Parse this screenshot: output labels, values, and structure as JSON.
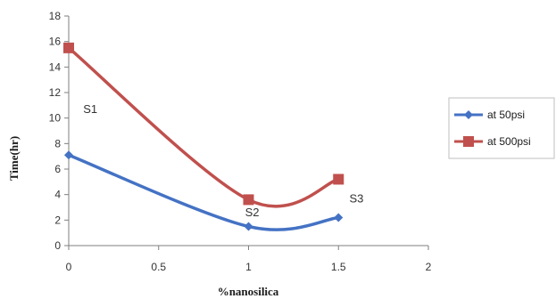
{
  "chart_data": {
    "type": "line",
    "xlabel": "%nanosilica",
    "ylabel": "Time(hr)",
    "xlim": [
      0,
      2
    ],
    "ylim": [
      0,
      18
    ],
    "x_ticks": [
      0,
      0.5,
      1,
      1.5,
      2
    ],
    "y_ticks": [
      0,
      2,
      4,
      6,
      8,
      10,
      12,
      14,
      16,
      18
    ],
    "grid": false,
    "legend_position": "right",
    "smooth": true,
    "series": [
      {
        "name": "at 50psi",
        "color": "#4472C4",
        "marker": "diamond",
        "x": [
          0,
          1,
          1.5
        ],
        "y": [
          7.1,
          1.5,
          2.2
        ]
      },
      {
        "name": "at 500psi",
        "color": "#C0504D",
        "marker": "square",
        "x": [
          0,
          1,
          1.5
        ],
        "y": [
          15.5,
          3.6,
          5.2
        ]
      }
    ],
    "annotations": [
      {
        "text": "S1",
        "x": 0.12,
        "y": 10.4
      },
      {
        "text": "S2",
        "x": 1.02,
        "y": 2.3
      },
      {
        "text": "S3",
        "x": 1.6,
        "y": 3.4
      }
    ]
  }
}
